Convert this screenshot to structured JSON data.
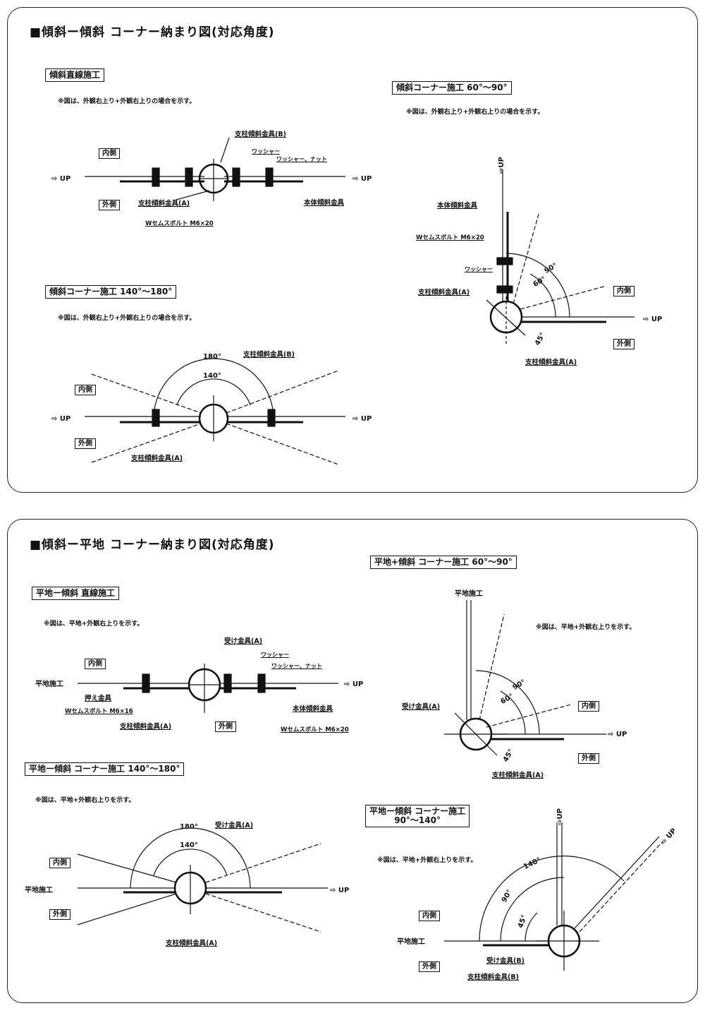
{
  "section1": {
    "title": "■傾斜ー傾斜 コーナー納まり図(対応角度)",
    "straight": {
      "heading": "傾斜直線施工",
      "note": "※図は、外観右上り+外観右上りの場合を示す。",
      "inner": "内側",
      "outer": "外側",
      "up_left": "⇨ UP",
      "up_right": "⇨ UP",
      "post_b": "支柱傾斜金具(B)",
      "washer": "ワッシャー",
      "washer_nut": "ワッシャー、ナット",
      "post_a": "支柱傾斜金具(A)",
      "body": "本体傾斜金具",
      "bolt": "Wセムスボルト M6×20"
    },
    "corner140": {
      "heading": "傾斜コーナー施工 140°〜180°",
      "note": "※図は、外観右上り+外観右上りの場合を示す。",
      "angle180": "180°",
      "angle140": "140°",
      "post_b": "支柱傾斜金具(B)",
      "inner": "内側",
      "outer": "外側",
      "up_left": "⇨ UP",
      "up_right": "⇨ UP",
      "post_a": "支柱傾斜金具(A)"
    },
    "corner60": {
      "heading": "傾斜コーナー施工 60°〜90°",
      "note": "※図は、外観右上り+外観右上りの場合を示す。",
      "up_vertical": "⇨UP",
      "body": "本体傾斜金具",
      "bolt": "Wセムスボルト M6×20",
      "washer": "ワッシャー",
      "post_a_left": "支柱傾斜金具(A)",
      "inner": "内側",
      "up_right": "⇨ UP",
      "outer": "外側",
      "post_a_bottom": "支柱傾斜金具(A)",
      "angle90": "90°",
      "angle60": "60°",
      "angle45": "45°"
    }
  },
  "section2": {
    "title": "■傾斜ー平地 コーナー納まり図(対応角度)",
    "straight": {
      "heading": "平地ー傾斜 直線施工",
      "note": "※図は、平地+外観右上りを示す。",
      "receiver_a": "受け金具(A)",
      "washer": "ワッシャー",
      "washer_nut": "ワッシャー、ナット",
      "inner": "内側",
      "flat": "平地施工",
      "up": "⇨ UP",
      "press": "押え金具",
      "bolt16": "Wセムスボルト M6×16",
      "post_a": "支柱傾斜金具(A)",
      "outer": "外側",
      "body": "本体傾斜金具",
      "bolt20": "Wセムスボルト M6×20"
    },
    "corner140": {
      "heading": "平地ー傾斜 コーナー施工 140°〜180°",
      "note": "※図は、平地+外観右上りを示す。",
      "angle180": "180°",
      "angle140": "140°",
      "receiver_a": "受け金具(A)",
      "inner": "内側",
      "flat": "平地施工",
      "up": "⇨ UP",
      "outer": "外側",
      "post_a": "支柱傾斜金具(A)"
    },
    "corner60": {
      "heading": "平地+傾斜 コーナー施工 60°〜90°",
      "flat": "平地施工",
      "note": "※図は、平地+外観右上りを示す。",
      "receiver_a": "受け金具(A)",
      "inner": "内側",
      "up": "⇨ UP",
      "outer": "外側",
      "post_a": "支柱傾斜金具(A)",
      "angle90": "90°",
      "angle60": "60°",
      "angle45": "45°"
    },
    "corner90": {
      "heading_line1": "平地ー傾斜 コーナー施工",
      "heading_line2": "90°〜140°",
      "note": "※図は、平地+外観右上りを示す。",
      "up_vertical": "⇨UP",
      "up_diagonal": "⇨ UP",
      "inner": "内側",
      "flat": "平地施工",
      "outer": "外側",
      "receiver_b": "受け金具(B)",
      "post_b": "支柱傾斜金具(B)",
      "angle140": "140°",
      "angle90": "90°",
      "angle45": "45°"
    }
  }
}
